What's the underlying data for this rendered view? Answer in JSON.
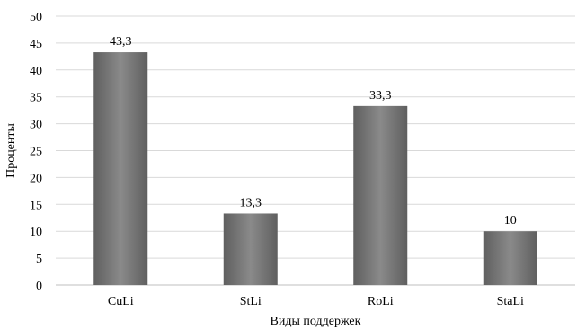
{
  "chart_data": {
    "type": "bar",
    "categories": [
      "CuLi",
      "StLi",
      "RoLi",
      "StaLi"
    ],
    "values": [
      43.3,
      13.3,
      33.3,
      10
    ],
    "data_labels": [
      "43,3",
      "13,3",
      "33,3",
      "10"
    ],
    "xlabel": "Виды поддержек",
    "ylabel": "Проценты",
    "ylim": [
      0,
      50
    ],
    "yticks": [
      0,
      5,
      10,
      15,
      20,
      25,
      30,
      35,
      40,
      45,
      50
    ],
    "grid": true,
    "legend": "none",
    "colors": {
      "bar_dark": "#5f5f5f",
      "bar_light": "#8c8c8c",
      "grid": "#d9d9d9",
      "axis": "#bfbfbf"
    }
  }
}
